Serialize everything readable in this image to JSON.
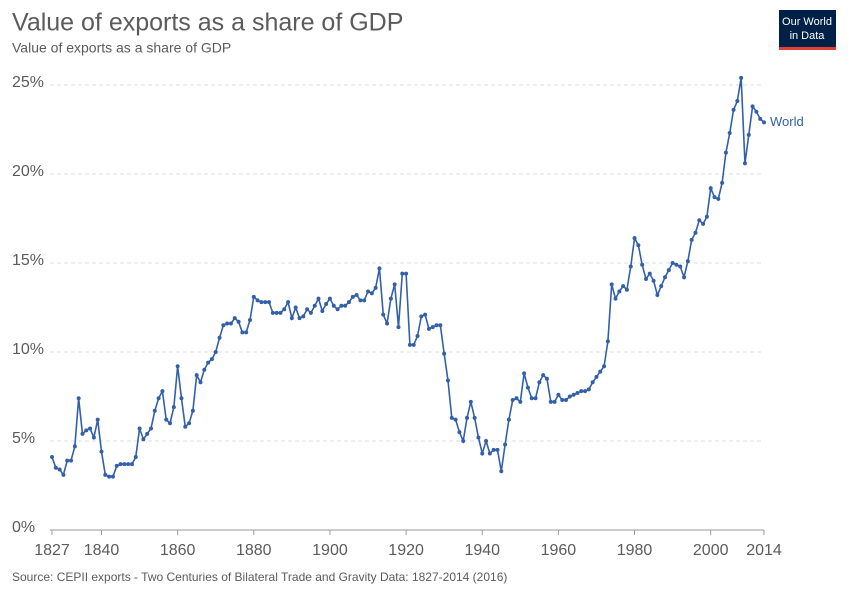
{
  "chart_data": {
    "type": "line",
    "title": "Value of exports as a share of GDP",
    "subtitle": "Value of exports as a share of GDP",
    "source": "Source: CEPII exports - Two Centuries of Bilateral Trade and Gravity Data: 1827-2014 (2016)",
    "logo": [
      "Our World",
      "in Data"
    ],
    "x": [
      1827,
      1828,
      1829,
      1830,
      1831,
      1832,
      1833,
      1834,
      1835,
      1836,
      1837,
      1838,
      1839,
      1840,
      1841,
      1842,
      1843,
      1844,
      1845,
      1846,
      1847,
      1848,
      1849,
      1850,
      1851,
      1852,
      1853,
      1854,
      1855,
      1856,
      1857,
      1858,
      1859,
      1860,
      1861,
      1862,
      1863,
      1864,
      1865,
      1866,
      1867,
      1868,
      1869,
      1870,
      1871,
      1872,
      1873,
      1874,
      1875,
      1876,
      1877,
      1878,
      1879,
      1880,
      1881,
      1882,
      1883,
      1884,
      1885,
      1886,
      1887,
      1888,
      1889,
      1890,
      1891,
      1892,
      1893,
      1894,
      1895,
      1896,
      1897,
      1898,
      1899,
      1900,
      1901,
      1902,
      1903,
      1904,
      1905,
      1906,
      1907,
      1908,
      1909,
      1910,
      1911,
      1912,
      1913,
      1914,
      1915,
      1916,
      1917,
      1918,
      1919,
      1920,
      1921,
      1922,
      1923,
      1924,
      1925,
      1926,
      1927,
      1928,
      1929,
      1930,
      1931,
      1932,
      1933,
      1934,
      1935,
      1936,
      1937,
      1938,
      1939,
      1940,
      1941,
      1942,
      1943,
      1944,
      1945,
      1946,
      1947,
      1948,
      1949,
      1950,
      1951,
      1952,
      1953,
      1954,
      1955,
      1956,
      1957,
      1958,
      1959,
      1960,
      1961,
      1962,
      1963,
      1964,
      1965,
      1966,
      1967,
      1968,
      1969,
      1970,
      1971,
      1972,
      1973,
      1974,
      1975,
      1976,
      1977,
      1978,
      1979,
      1980,
      1981,
      1982,
      1983,
      1984,
      1985,
      1986,
      1987,
      1988,
      1989,
      1990,
      1991,
      1992,
      1993,
      1994,
      1995,
      1996,
      1997,
      1998,
      1999,
      2000,
      2001,
      2002,
      2003,
      2004,
      2005,
      2006,
      2007,
      2008,
      2009,
      2010,
      2011,
      2012,
      2013,
      2014
    ],
    "series": [
      {
        "name": "World",
        "color": "#3360a9",
        "values": [
          4.1,
          3.5,
          3.4,
          3.1,
          3.9,
          3.9,
          4.7,
          7.4,
          5.4,
          5.6,
          5.7,
          5.2,
          6.2,
          4.4,
          3.1,
          3.0,
          3.0,
          3.6,
          3.7,
          3.7,
          3.7,
          3.7,
          4.1,
          5.7,
          5.1,
          5.4,
          5.7,
          6.7,
          7.4,
          7.8,
          6.2,
          6.0,
          6.9,
          9.2,
          7.4,
          5.8,
          6.0,
          6.7,
          8.7,
          8.3,
          9.0,
          9.4,
          9.6,
          10.0,
          10.8,
          11.5,
          11.6,
          11.6,
          11.9,
          11.7,
          11.1,
          11.1,
          11.8,
          13.1,
          12.9,
          12.8,
          12.8,
          12.8,
          12.2,
          12.2,
          12.2,
          12.4,
          12.8,
          11.9,
          12.5,
          11.9,
          12.0,
          12.4,
          12.2,
          12.6,
          13.0,
          12.3,
          12.7,
          13.0,
          12.6,
          12.4,
          12.6,
          12.6,
          12.8,
          13.1,
          13.2,
          12.9,
          12.9,
          13.4,
          13.3,
          13.6,
          14.7,
          12.1,
          11.6,
          13.0,
          13.8,
          11.4,
          14.4,
          14.4,
          10.4,
          10.4,
          10.9,
          12.0,
          12.1,
          11.3,
          11.4,
          11.5,
          11.5,
          9.9,
          8.4,
          6.3,
          6.2,
          5.5,
          5.0,
          6.3,
          7.2,
          6.3,
          5.2,
          4.3,
          5.0,
          4.3,
          4.5,
          4.5,
          3.3,
          4.8,
          6.2,
          7.3,
          7.4,
          7.2,
          8.8,
          8.0,
          7.4,
          7.4,
          8.3,
          8.7,
          8.5,
          7.2,
          7.2,
          7.6,
          7.3,
          7.3,
          7.5,
          7.6,
          7.7,
          7.8,
          7.8,
          7.9,
          8.3,
          8.6,
          8.9,
          9.2,
          10.6,
          13.8,
          13.0,
          13.4,
          13.7,
          13.5,
          14.8,
          16.4,
          16.0,
          14.9,
          14.1,
          14.4,
          14.0,
          13.2,
          13.7,
          14.2,
          14.6,
          15.0,
          14.9,
          14.8,
          14.2,
          15.1,
          16.3,
          16.7,
          17.4,
          17.2,
          17.6,
          19.2,
          18.7,
          18.6,
          19.5,
          21.2,
          22.3,
          23.6,
          24.1,
          25.4,
          20.6,
          22.2,
          23.8,
          23.5,
          23.1,
          22.9
        ]
      }
    ],
    "xlim": [
      1827,
      2014
    ],
    "xticks": [
      1827,
      1840,
      1860,
      1880,
      1900,
      1920,
      1940,
      1960,
      1980,
      2000,
      2014
    ],
    "ylim": [
      0,
      26
    ],
    "yticks": [
      {
        "value": 0,
        "label": "0%"
      },
      {
        "value": 5,
        "label": "5%"
      },
      {
        "value": 10,
        "label": "10%"
      },
      {
        "value": 15,
        "label": "15%"
      },
      {
        "value": 20,
        "label": "20%"
      },
      {
        "value": 25,
        "label": "25%"
      }
    ],
    "grid": true
  }
}
